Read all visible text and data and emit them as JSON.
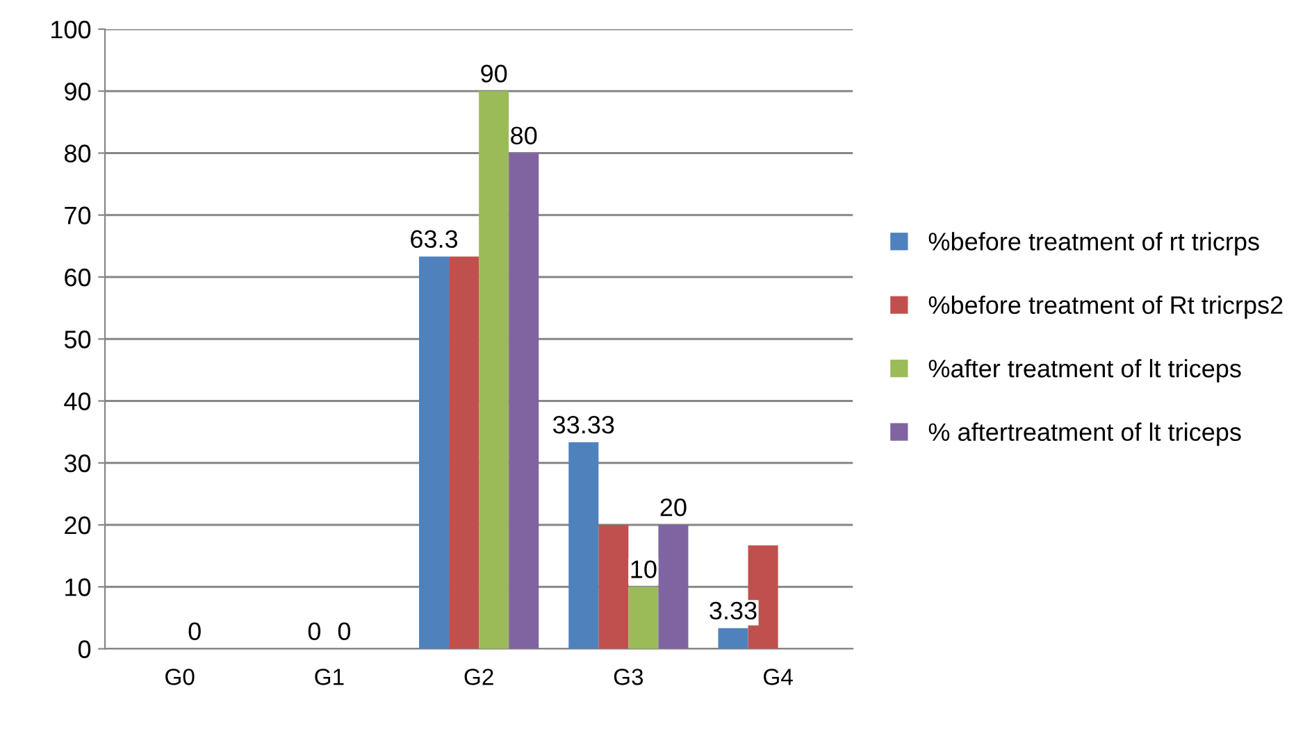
{
  "chart_data": {
    "type": "bar",
    "categories": [
      "G0",
      "G1",
      "G2",
      "G3",
      "G4"
    ],
    "series": [
      {
        "name": "%before treatment of rt tricrps",
        "color": "#4f81bd",
        "values": [
          0,
          0,
          63.3,
          33.33,
          3.33
        ],
        "value_labels": [
          null,
          null,
          "63.3",
          "33.33",
          "3.33"
        ]
      },
      {
        "name": "%before treatment of Rt tricrps2",
        "color": "#c0504d",
        "values": [
          0,
          0,
          63.3,
          20,
          16.7
        ],
        "value_labels": [
          null,
          "0",
          null,
          null,
          null
        ]
      },
      {
        "name": "%after treatment of lt triceps",
        "color": "#9bbb59",
        "values": [
          0,
          0,
          90,
          10,
          0
        ],
        "value_labels": [
          "0",
          "0",
          "90",
          "10",
          null
        ]
      },
      {
        "name": "% aftertreatment of lt triceps",
        "color": "#8064a2",
        "values": [
          0,
          0,
          80,
          20,
          0
        ],
        "value_labels": [
          null,
          null,
          "80",
          "20",
          null
        ]
      }
    ],
    "ylim": [
      0,
      100
    ],
    "yticks": [
      0,
      10,
      20,
      30,
      40,
      50,
      60,
      70,
      80,
      90,
      100
    ],
    "grid": "y",
    "legend": "right"
  }
}
